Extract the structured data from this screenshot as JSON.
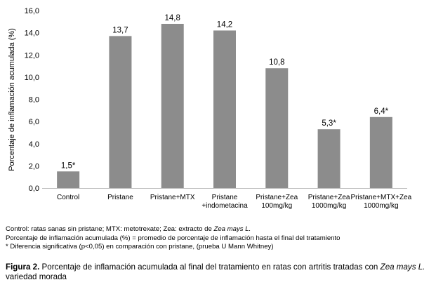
{
  "chart_data": {
    "type": "bar",
    "ylabel": "Porcentaje de inflamación acumulada (%)",
    "xlabel": "",
    "ylim": [
      0,
      16
    ],
    "ytick_step": 2,
    "ytick_labels": [
      "0,0",
      "2,0",
      "4,0",
      "6,0",
      "8,0",
      "10,0",
      "12,0",
      "14,0",
      "16,0"
    ],
    "grid": false,
    "bar_color": "#8c8c8c",
    "categories": [
      [
        "Control"
      ],
      [
        "Pristane"
      ],
      [
        "Pristane+MTX"
      ],
      [
        "Pristane",
        "+indometacina"
      ],
      [
        "Pristane+Zea",
        "100mg/kg"
      ],
      [
        "Pristane+Zea",
        "1000mg/kg"
      ],
      [
        "Pristane+MTX+Zea",
        "1000mg/kg"
      ]
    ],
    "values": [
      1.5,
      13.7,
      14.8,
      14.2,
      10.8,
      5.3,
      6.4
    ],
    "data_labels": [
      "1,5*",
      "13,7",
      "14,8",
      "14,2",
      "10,8",
      "5,3*",
      "6,4*"
    ]
  },
  "notes": {
    "line1_prefix": "Control: ratas sanas sin pristane; MTX: metotrexate; Zea: extracto de ",
    "line1_italic": "Zea mays L.",
    "line2": "Porcentaje de inflamación acumulada (%) = promedio de porcentaje de inflamación hasta el final del tratamiento",
    "line3": "* Diferencia significativa (p<0,05) en comparación con pristane, (prueba U Mann Whitney)"
  },
  "caption": {
    "label": "Figura 2.",
    "text": " Porcentaje de inflamación acumulada al final del tratamiento en ratas con artritis tratadas con ",
    "italic": "Zea mays L.",
    "text2": " variedad morada"
  }
}
